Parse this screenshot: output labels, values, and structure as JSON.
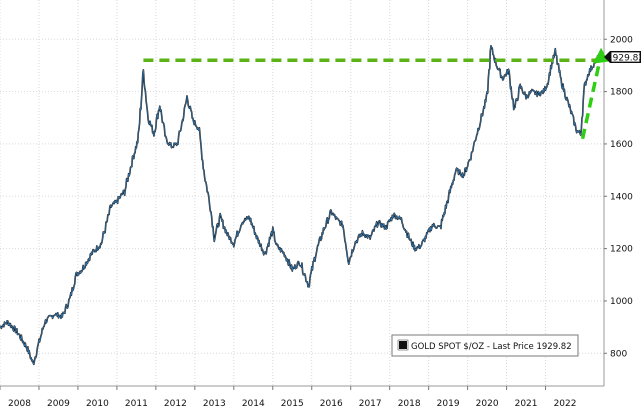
{
  "chart_data": {
    "type": "line",
    "title": "",
    "xlabel": "",
    "ylabel": "",
    "x_ticks": [
      "2008",
      "2009",
      "2010",
      "2011",
      "2012",
      "2013",
      "2014",
      "2015",
      "2016",
      "2017",
      "2018",
      "2019",
      "2020",
      "2021",
      "2022"
    ],
    "y_ticks": [
      800,
      1000,
      1200,
      1400,
      1600,
      1800,
      2000
    ],
    "ylim": [
      675,
      2150
    ],
    "xlim": [
      2008.0,
      2023.5
    ],
    "grid": true,
    "legend_position": "bottom-right",
    "series": [
      {
        "name": "GOLD SPOT $/OZ - Last Price 1929.82",
        "color": "#111111",
        "x": [
          2008.0,
          2008.2,
          2008.45,
          2008.7,
          2008.85,
          2009.0,
          2009.15,
          2009.4,
          2009.6,
          2009.8,
          2009.95,
          2010.1,
          2010.35,
          2010.6,
          2010.85,
          2011.0,
          2011.2,
          2011.4,
          2011.55,
          2011.68,
          2011.8,
          2011.95,
          2012.1,
          2012.25,
          2012.4,
          2012.55,
          2012.7,
          2012.8,
          2012.95,
          2013.1,
          2013.25,
          2013.4,
          2013.5,
          2013.65,
          2013.85,
          2014.0,
          2014.2,
          2014.4,
          2014.6,
          2014.8,
          2015.0,
          2015.1,
          2015.3,
          2015.5,
          2015.7,
          2015.92,
          2016.1,
          2016.3,
          2016.5,
          2016.65,
          2016.8,
          2016.95,
          2017.1,
          2017.3,
          2017.5,
          2017.7,
          2017.9,
          2018.1,
          2018.3,
          2018.5,
          2018.65,
          2018.8,
          2018.95,
          2019.1,
          2019.3,
          2019.5,
          2019.7,
          2019.9,
          2020.1,
          2020.2,
          2020.35,
          2020.5,
          2020.6,
          2020.75,
          2020.9,
          2021.05,
          2021.2,
          2021.35,
          2021.5,
          2021.65,
          2021.8,
          2021.95,
          2022.05,
          2022.15,
          2022.25,
          2022.4,
          2022.55,
          2022.7,
          2022.8,
          2022.9,
          2023.0,
          2023.1,
          2023.25,
          2023.35
        ],
        "values": [
          900,
          920,
          880,
          820,
          760,
          840,
          920,
          950,
          940,
          1010,
          1100,
          1120,
          1180,
          1220,
          1360,
          1380,
          1420,
          1540,
          1620,
          1880,
          1700,
          1640,
          1750,
          1620,
          1590,
          1600,
          1700,
          1780,
          1690,
          1660,
          1480,
          1360,
          1240,
          1320,
          1250,
          1220,
          1300,
          1320,
          1240,
          1180,
          1270,
          1210,
          1180,
          1120,
          1150,
          1060,
          1180,
          1270,
          1340,
          1310,
          1290,
          1150,
          1220,
          1260,
          1240,
          1300,
          1280,
          1330,
          1310,
          1240,
          1200,
          1210,
          1250,
          1290,
          1280,
          1390,
          1500,
          1480,
          1560,
          1620,
          1700,
          1780,
          1970,
          1900,
          1850,
          1880,
          1730,
          1820,
          1780,
          1800,
          1790,
          1800,
          1830,
          1900,
          1950,
          1840,
          1770,
          1700,
          1650,
          1640,
          1820,
          1870,
          1910,
          1930
        ]
      }
    ],
    "annotations": [
      {
        "type": "horizontal-dashed",
        "color": "#5cb318",
        "y": 1920,
        "x_start": 2011.68,
        "x_end": 2023.4
      },
      {
        "type": "arrow-dashed",
        "color": "#2ecf12",
        "from": [
          2022.95,
          1620
        ],
        "to": [
          2023.4,
          1945
        ]
      }
    ],
    "last_price_label": "1929.82",
    "legend_label": "GOLD SPOT $/OZ - Last Price 1929.82"
  }
}
